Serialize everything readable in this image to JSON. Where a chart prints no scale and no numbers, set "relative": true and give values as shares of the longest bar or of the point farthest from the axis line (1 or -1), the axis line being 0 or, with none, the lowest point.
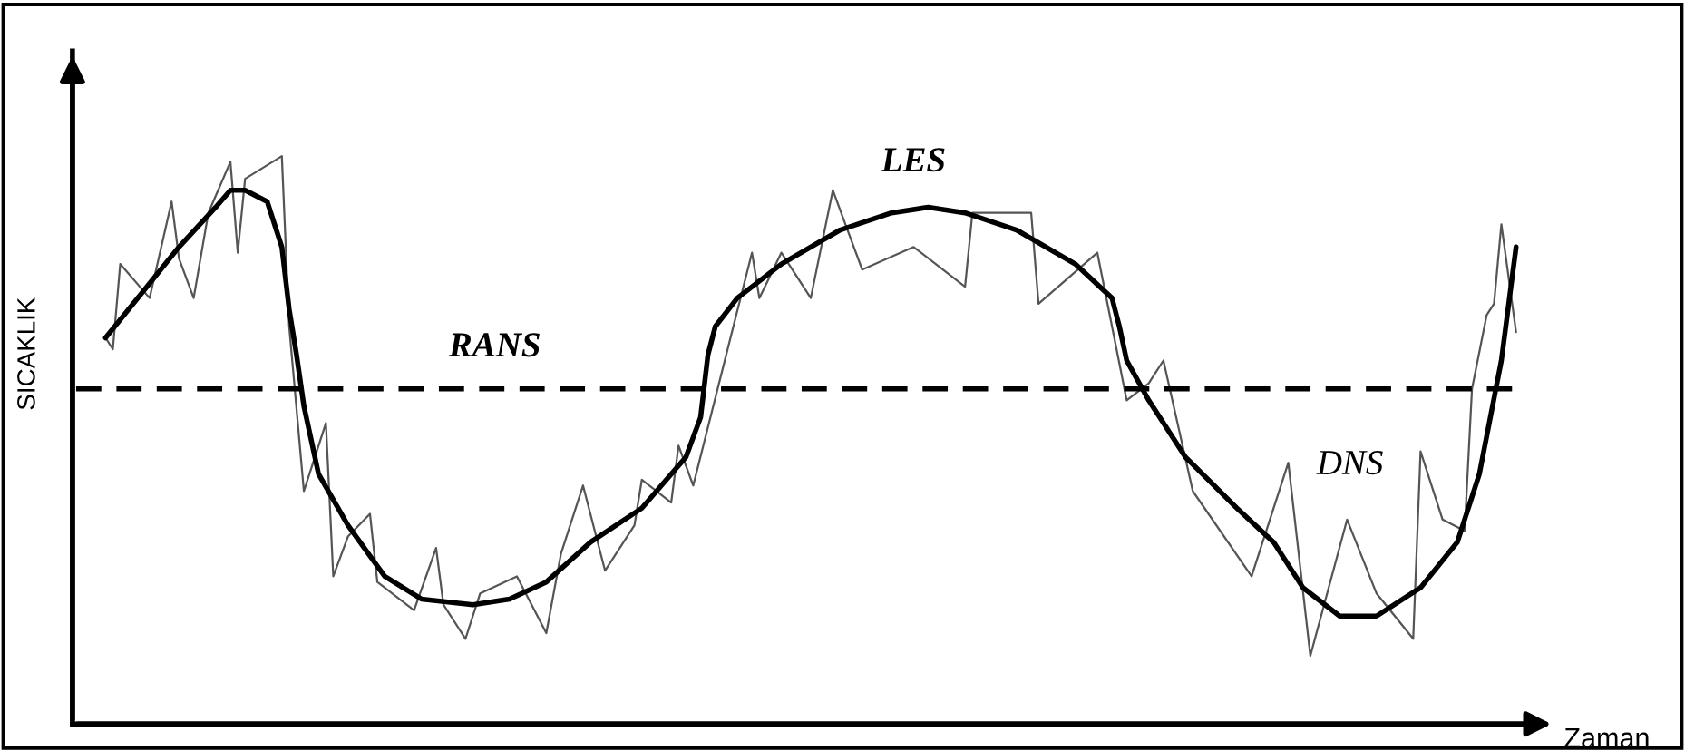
{
  "chart_data": {
    "type": "line",
    "relative": true,
    "xlabel": "Zaman",
    "ylabel": "SICAKLIK",
    "categories": [
      null,
      null,
      null,
      null,
      null,
      null,
      null,
      null,
      null,
      null,
      null,
      null,
      null,
      null,
      null,
      null,
      null,
      null,
      null,
      null,
      null,
      null,
      null,
      null,
      null,
      null,
      null,
      null,
      null,
      null,
      null,
      null,
      null,
      null,
      null,
      null,
      null,
      null,
      null,
      null,
      null,
      null,
      null,
      null,
      null,
      null,
      null,
      null,
      null,
      null,
      null,
      null,
      null,
      null,
      null,
      null,
      null,
      null,
      null,
      null,
      null,
      null,
      null,
      null,
      null,
      null,
      null,
      null,
      null,
      null,
      null,
      null,
      null,
      null,
      null,
      null,
      null,
      null,
      null,
      null,
      null,
      null,
      null,
      null,
      null,
      null,
      null,
      null,
      null,
      null,
      null,
      null,
      null,
      null,
      null,
      null,
      null,
      null,
      null,
      null,
      null,
      null,
      null,
      null,
      null,
      null,
      null,
      null,
      null,
      null,
      null,
      null,
      null,
      null,
      null,
      null,
      null,
      null,
      null,
      null,
      null,
      null,
      null,
      null,
      null,
      null,
      null,
      null,
      null,
      null,
      null,
      null,
      null,
      null,
      null,
      null,
      null,
      null,
      null,
      null,
      null,
      null,
      null,
      null,
      null,
      null,
      null,
      null,
      null,
      null,
      null,
      null,
      null,
      null,
      null,
      null,
      null,
      null,
      null,
      null,
      null,
      null,
      null,
      null,
      null,
      null,
      null,
      null,
      null,
      null,
      null,
      null,
      null,
      null,
      null,
      null,
      null,
      null,
      null,
      null,
      null,
      null,
      null,
      null,
      null,
      null,
      null,
      null,
      null,
      null,
      null,
      null,
      null,
      null,
      null,
      null,
      null,
      null,
      null,
      null
    ],
    "series": [
      {
        "name": "RANS",
        "color": "#000000",
        "line_style": "dashed",
        "values": [
          0.59,
          null,
          null,
          null,
          null,
          null,
          null,
          null,
          null,
          null,
          null,
          null,
          null,
          null,
          null,
          null,
          null,
          null,
          null,
          null,
          null,
          null,
          null,
          null,
          null,
          null,
          null,
          null,
          null,
          null,
          null,
          null,
          null,
          null,
          null,
          null,
          null,
          null,
          null,
          null,
          null,
          null,
          null,
          null,
          null,
          null,
          null,
          null,
          null,
          null,
          null,
          null,
          null,
          null,
          null,
          null,
          null,
          null,
          null,
          null,
          null,
          null,
          null,
          null,
          null,
          null,
          null,
          null,
          null,
          null,
          null,
          null,
          null,
          null,
          null,
          null,
          null,
          null,
          null,
          null,
          null,
          null,
          null,
          null,
          null,
          null,
          null,
          null,
          null,
          null,
          null,
          null,
          null,
          null,
          null,
          null,
          null,
          null,
          null,
          null,
          null,
          null,
          null,
          null,
          null,
          null,
          null,
          null,
          null,
          null,
          null,
          null,
          null,
          null,
          null,
          null,
          null,
          null,
          null,
          null,
          null,
          null,
          null,
          null,
          null,
          null,
          null,
          null,
          null,
          null,
          null,
          null,
          null,
          null,
          null,
          null,
          null,
          null,
          null,
          null,
          null,
          null,
          null,
          null,
          null,
          null,
          null,
          null,
          null,
          null,
          null,
          null,
          null,
          null,
          null,
          null,
          null,
          null,
          null,
          null,
          null,
          null,
          null,
          null,
          null,
          null,
          null,
          null,
          null,
          null,
          null,
          null,
          null,
          null,
          null,
          null,
          null,
          null,
          null,
          null,
          null,
          null,
          null,
          null,
          null,
          null,
          null,
          null,
          null,
          null,
          null,
          null,
          null,
          null,
          null,
          null,
          0.59,
          null,
          null,
          null
        ]
      },
      {
        "name": "LES",
        "color": "#000000",
        "line_style": "solid",
        "values": [
          null,
          null,
          null,
          null,
          0.68,
          null,
          null,
          null,
          null,
          0.76,
          null,
          null,
          null,
          null,
          0.84,
          null,
          null,
          null,
          null,
          0.91,
          null,
          0.94,
          null,
          0.94,
          null,
          null,
          0.92,
          null,
          0.84,
          0.73,
          0.65,
          0.56,
          null,
          0.44,
          null,
          null,
          null,
          0.35,
          null,
          null,
          null,
          null,
          0.26,
          null,
          null,
          null,
          null,
          0.22,
          null,
          null,
          null,
          null,
          null,
          null,
          0.21,
          null,
          null,
          null,
          null,
          0.22,
          null,
          null,
          null,
          null,
          0.25,
          null,
          null,
          null,
          null,
          null,
          0.32,
          null,
          null,
          null,
          null,
          null,
          null,
          0.38,
          null,
          null,
          null,
          null,
          null,
          0.47,
          null,
          0.54,
          0.65,
          0.7,
          null,
          null,
          0.75,
          null,
          null,
          null,
          null,
          null,
          0.81,
          null,
          null,
          null,
          null,
          null,
          null,
          null,
          0.87,
          null,
          null,
          null,
          null,
          null,
          null,
          0.9,
          null,
          null,
          null,
          null,
          0.91,
          null,
          null,
          null,
          null,
          0.9,
          null,
          null,
          null,
          null,
          null,
          null,
          0.87,
          null,
          null,
          null,
          null,
          null,
          null,
          null,
          0.81,
          null,
          null,
          null,
          null,
          0.75,
          0.7,
          0.64,
          null,
          null,
          0.57,
          null,
          null,
          null,
          null,
          0.47,
          null,
          null,
          null,
          null,
          null,
          null,
          0.38,
          null,
          null,
          null,
          null,
          0.32,
          null,
          null,
          null,
          0.24,
          null,
          null,
          null,
          null,
          0.19,
          null,
          null,
          null,
          null,
          0.19,
          null,
          null,
          null,
          null,
          null,
          0.24,
          null,
          null,
          null,
          null,
          0.32,
          null,
          null,
          0.44,
          null,
          null,
          0.64,
          null,
          0.84,
          null,
          null,
          null
        ]
      },
      {
        "name": "DNS",
        "color": "#555555",
        "line_style": "solid",
        "values": [
          null,
          null,
          null,
          null,
          0.68,
          0.66,
          0.81,
          null,
          null,
          null,
          0.75,
          null,
          null,
          0.92,
          0.82,
          null,
          0.75,
          null,
          0.9,
          null,
          null,
          0.99,
          0.83,
          0.96,
          null,
          null,
          null,
          null,
          1.0,
          0.7,
          null,
          0.41,
          null,
          null,
          0.53,
          0.26,
          null,
          0.33,
          null,
          null,
          0.37,
          0.25,
          null,
          null,
          null,
          null,
          0.2,
          null,
          null,
          0.31,
          0.21,
          null,
          null,
          0.15,
          null,
          0.23,
          null,
          null,
          null,
          null,
          0.26,
          null,
          null,
          null,
          0.16,
          null,
          0.3,
          null,
          null,
          0.42,
          null,
          null,
          0.27,
          null,
          0.31,
          null,
          0.35,
          0.43,
          null,
          null,
          null,
          0.39,
          0.49,
          null,
          0.42,
          null,
          null,
          null,
          null,
          null,
          null,
          null,
          0.83,
          0.75,
          null,
          null,
          0.83,
          null,
          null,
          null,
          0.75,
          null,
          null,
          0.94,
          null,
          null,
          null,
          0.8,
          null,
          null,
          null,
          null,
          null,
          null,
          0.84,
          null,
          null,
          null,
          null,
          null,
          null,
          0.77,
          0.9,
          null,
          null,
          null,
          null,
          null,
          null,
          null,
          0.9,
          0.74,
          null,
          null,
          null,
          null,
          null,
          null,
          null,
          0.83,
          null,
          null,
          null,
          0.57,
          null,
          null,
          0.6,
          null,
          0.64,
          null,
          null,
          null,
          0.41,
          null,
          null,
          null,
          null,
          null,
          null,
          null,
          0.26,
          null,
          null,
          null,
          null,
          0.46,
          null,
          null,
          0.12,
          null,
          null,
          null,
          null,
          0.36,
          null,
          null,
          null,
          0.23,
          null,
          null,
          null,
          null,
          0.15,
          0.48,
          null,
          null,
          0.36,
          null,
          null,
          0.34,
          0.59,
          null,
          0.72,
          0.74,
          0.88,
          null,
          0.69,
          null,
          null,
          null
        ]
      }
    ]
  }
}
